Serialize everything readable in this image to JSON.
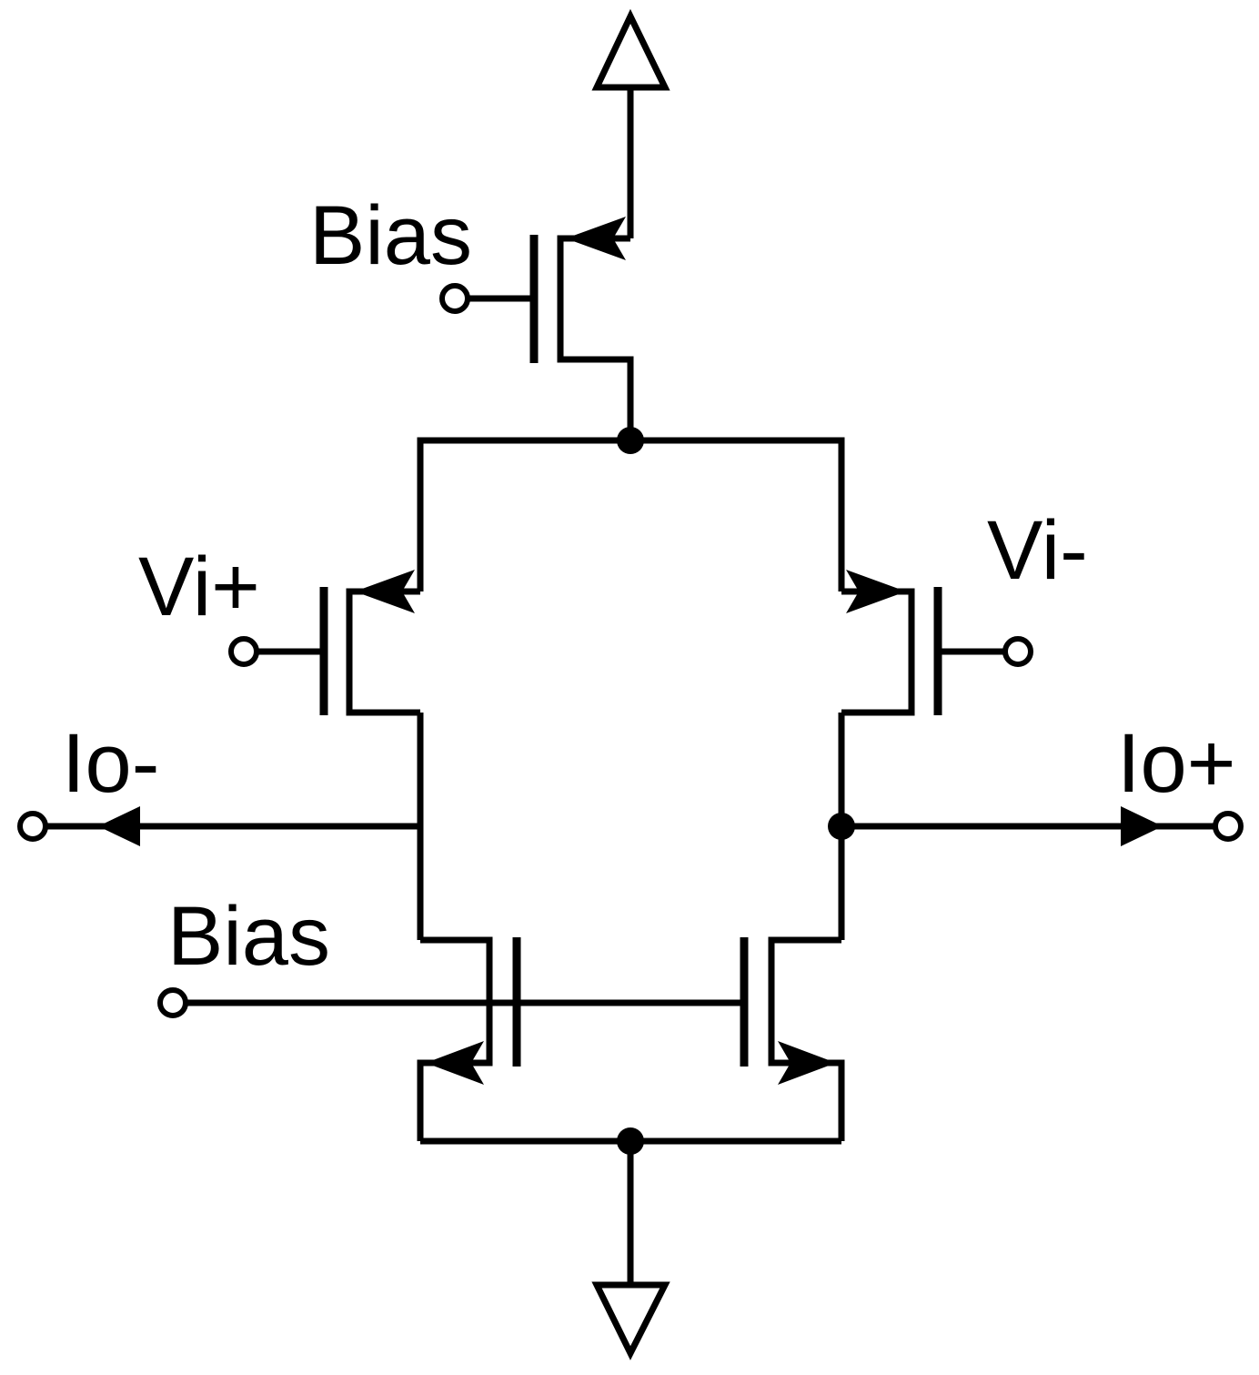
{
  "labels": {
    "bias_top": "Bias",
    "vi_plus": "Vi+",
    "vi_minus": "Vi-",
    "io_minus": "Io-",
    "io_plus": "Io+",
    "bias_bottom": "Bias"
  }
}
